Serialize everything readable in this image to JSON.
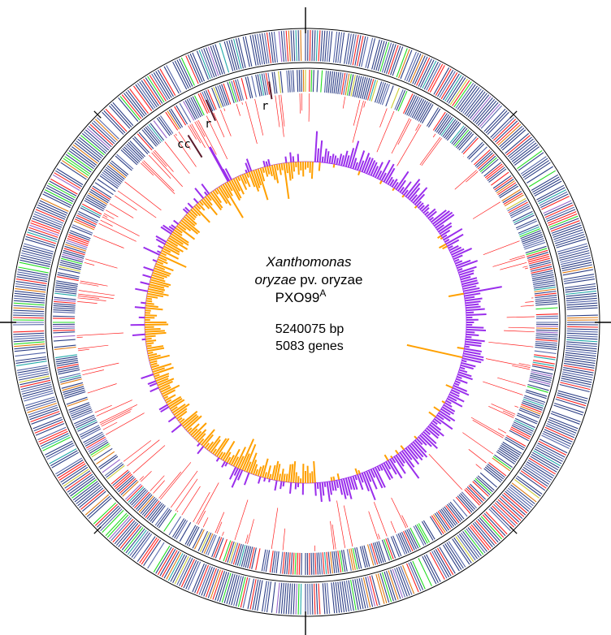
{
  "genome": {
    "title_italic_1": "Xanthomonas",
    "title_italic_2": "oryzae",
    "title_rest_2": " pv. oryzae",
    "strain_base": "PXO99",
    "strain_sup": "A",
    "length": "5240075 bp",
    "gene_count": "5083 genes"
  },
  "markers": {
    "cc": "cc",
    "r1": "r",
    "r2": "r"
  },
  "colors": {
    "ring_stroke": "#000000",
    "gene_blue": "#2d3f86",
    "gene_blue_light": "#5566aa",
    "gene_red": "#ff2020",
    "gene_green": "#22dd22",
    "gene_cyan": "#22aaaa",
    "gene_orange": "#e07a10",
    "gene_purple": "#9966cc",
    "gene_yellow": "#cccc33",
    "gc_high": "#9a2eec",
    "gc_low": "#ffa000"
  }
}
